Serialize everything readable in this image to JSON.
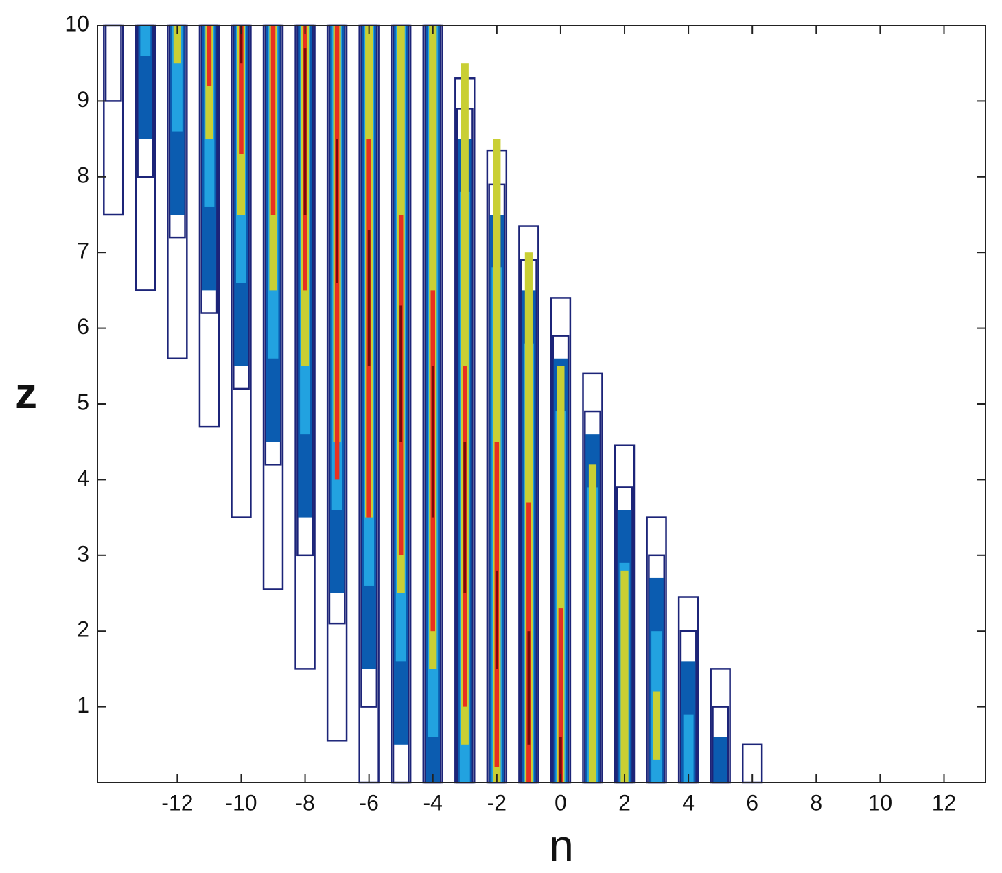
{
  "chart_data": {
    "type": "contour",
    "x_label": "n",
    "y_label": "z",
    "xlim": [
      -14.5,
      13.3
    ],
    "ylim": [
      0,
      10
    ],
    "xticks": [
      -12,
      -10,
      -8,
      -6,
      -4,
      -2,
      0,
      2,
      4,
      6,
      8,
      10,
      12
    ],
    "yticks": [
      1,
      2,
      3,
      4,
      5,
      6,
      7,
      8,
      9,
      10
    ],
    "x": [
      -14,
      -13,
      -12,
      -11,
      -10,
      -9,
      -8,
      -7,
      -6,
      -5,
      -4,
      -3,
      -2,
      -1,
      0,
      1,
      2,
      3,
      4,
      5,
      6
    ],
    "series": [
      {
        "color": "#1c2478",
        "fill": false,
        "half_width": 0.3,
        "z_from": [
          7.5,
          6.5,
          5.6,
          4.7,
          3.5,
          2.55,
          1.5,
          0.55,
          0,
          0,
          0,
          0,
          0,
          0,
          0,
          0,
          0,
          0,
          0,
          0,
          0
        ],
        "z_to": [
          10,
          10,
          10,
          10,
          10,
          10,
          10,
          10,
          10,
          10,
          10,
          9.3,
          8.35,
          7.35,
          6.4,
          5.4,
          4.45,
          3.5,
          2.45,
          1.5,
          0.5
        ]
      },
      {
        "color": "#1c2478",
        "fill": false,
        "half_width": 0.24,
        "z_from": [
          9,
          8,
          7.2,
          6.2,
          5.2,
          4.2,
          3,
          2.1,
          1,
          0,
          0,
          0,
          0,
          0,
          0,
          0,
          0,
          0,
          0,
          0,
          null
        ],
        "z_to": [
          10,
          10,
          10,
          10,
          10,
          10,
          10,
          10,
          10,
          10,
          10,
          8.9,
          7.9,
          6.9,
          5.9,
          4.9,
          3.9,
          3,
          2,
          1,
          null
        ]
      },
      {
        "color": "#0b5cb0",
        "fill": true,
        "half_width": 0.22,
        "z_from": [
          null,
          8.5,
          7.5,
          6.5,
          5.5,
          4.5,
          3.5,
          2.5,
          1.5,
          0.5,
          0,
          0,
          0,
          0,
          0,
          0,
          0,
          0,
          0,
          0,
          null
        ],
        "z_to": [
          null,
          10,
          10,
          10,
          10,
          10,
          10,
          10,
          10,
          10,
          10,
          8.5,
          7.5,
          6.5,
          5.6,
          4.6,
          3.6,
          2.7,
          1.6,
          0.6,
          null
        ]
      },
      {
        "color": "#22a2e0",
        "fill": true,
        "half_width": 0.16,
        "z_from": [
          null,
          9.6,
          8.6,
          7.6,
          6.6,
          5.6,
          4.6,
          3.6,
          2.6,
          1.6,
          0.6,
          0,
          0,
          0,
          0,
          0,
          0,
          0,
          0,
          null,
          null
        ],
        "z_to": [
          null,
          10,
          10,
          10,
          10,
          10,
          10,
          10,
          10,
          10,
          10,
          7.8,
          6.8,
          5.8,
          4.9,
          3.9,
          2.9,
          2,
          0.9,
          null,
          null
        ]
      },
      {
        "color": "#c9cf34",
        "fill": true,
        "half_width": 0.12,
        "z_from": [
          null,
          null,
          9.5,
          8.5,
          7.5,
          6.5,
          5.5,
          4.5,
          3.5,
          2.5,
          1.5,
          0.5,
          0,
          0,
          0,
          0,
          0,
          0.3,
          null,
          null,
          null
        ],
        "z_to": [
          null,
          null,
          10,
          10,
          10,
          10,
          10,
          10,
          10,
          10,
          10,
          9.5,
          8.5,
          7,
          5.5,
          4.2,
          2.8,
          1.2,
          null,
          null,
          null
        ]
      },
      {
        "color": "#e83020",
        "fill": true,
        "half_width": 0.07,
        "z_from": [
          null,
          null,
          null,
          9.2,
          8.3,
          7.5,
          6.5,
          4,
          3.5,
          3,
          2,
          1,
          0.2,
          0,
          0,
          null,
          null,
          null,
          null,
          null,
          null
        ],
        "z_to": [
          null,
          null,
          null,
          10,
          10,
          10,
          10,
          10,
          8.5,
          7.5,
          6.5,
          5.5,
          4.5,
          3.7,
          2.3,
          null,
          null,
          null,
          null,
          null,
          null
        ]
      },
      {
        "color": "#7a0a0a",
        "fill": true,
        "half_width": 0.04,
        "z_from": [
          null,
          null,
          null,
          null,
          9.5,
          null,
          7.5,
          6.6,
          5.5,
          4.5,
          3.5,
          2.5,
          1.5,
          0.5,
          0,
          null,
          null,
          null,
          null,
          null,
          null
        ],
        "z_to": [
          null,
          null,
          null,
          null,
          10,
          null,
          9.7,
          8.5,
          7.3,
          6.3,
          5.5,
          4.5,
          2.8,
          2,
          0.6,
          null,
          null,
          null,
          null,
          null,
          null
        ]
      }
    ]
  }
}
